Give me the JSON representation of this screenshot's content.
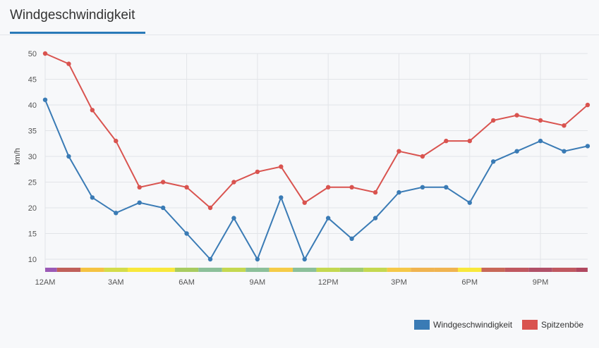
{
  "header": {
    "title": "Windgeschwindigkeit"
  },
  "chart_data": {
    "type": "line",
    "ylabel": "km/h",
    "ylim": [
      8,
      50
    ],
    "yticks": [
      10,
      15,
      20,
      25,
      30,
      35,
      40,
      45,
      50
    ],
    "xticks": [
      {
        "hour": 0,
        "label": "12AM"
      },
      {
        "hour": 3,
        "label": "3AM"
      },
      {
        "hour": 6,
        "label": "6AM"
      },
      {
        "hour": 9,
        "label": "9AM"
      },
      {
        "hour": 12,
        "label": "12PM"
      },
      {
        "hour": 15,
        "label": "3PM"
      },
      {
        "hour": 18,
        "label": "6PM"
      },
      {
        "hour": 21,
        "label": "9PM"
      }
    ],
    "x": [
      0,
      1,
      2,
      3,
      4,
      5,
      6,
      7,
      8,
      9,
      10,
      11,
      12,
      13,
      14,
      15,
      16,
      17,
      18,
      19,
      20,
      21,
      22,
      23
    ],
    "series": [
      {
        "name": "Windgeschwindigkeit",
        "color": "#3a7bb5",
        "values": [
          41,
          30,
          22,
          19,
          21,
          20,
          15,
          10,
          18,
          10,
          22,
          10,
          18,
          14,
          18,
          23,
          24,
          24,
          21,
          29,
          31,
          33,
          31,
          32
        ]
      },
      {
        "name": "Spitzenböe",
        "color": "#d9534f",
        "values": [
          50,
          48,
          39,
          33,
          24,
          25,
          24,
          20,
          25,
          27,
          28,
          21,
          24,
          24,
          23,
          31,
          30,
          33,
          33,
          37,
          38,
          37,
          36,
          40
        ]
      }
    ],
    "band_colors": [
      "#9b59b6",
      "#c0605a",
      "#f5c342",
      "#d4dc4a",
      "#f8e83c",
      "#f8e83c",
      "#a8cc60",
      "#8cc09a",
      "#c4d850",
      "#8cc09a",
      "#f5cc48",
      "#8cc09a",
      "#c4d850",
      "#a0cc70",
      "#c4d850",
      "#f5c848",
      "#f0b450",
      "#f0b450",
      "#f8e83c",
      "#c86858",
      "#c05860",
      "#b05068",
      "#c05860",
      "#b04860"
    ],
    "legend_position": "bottom-right",
    "grid": true
  }
}
